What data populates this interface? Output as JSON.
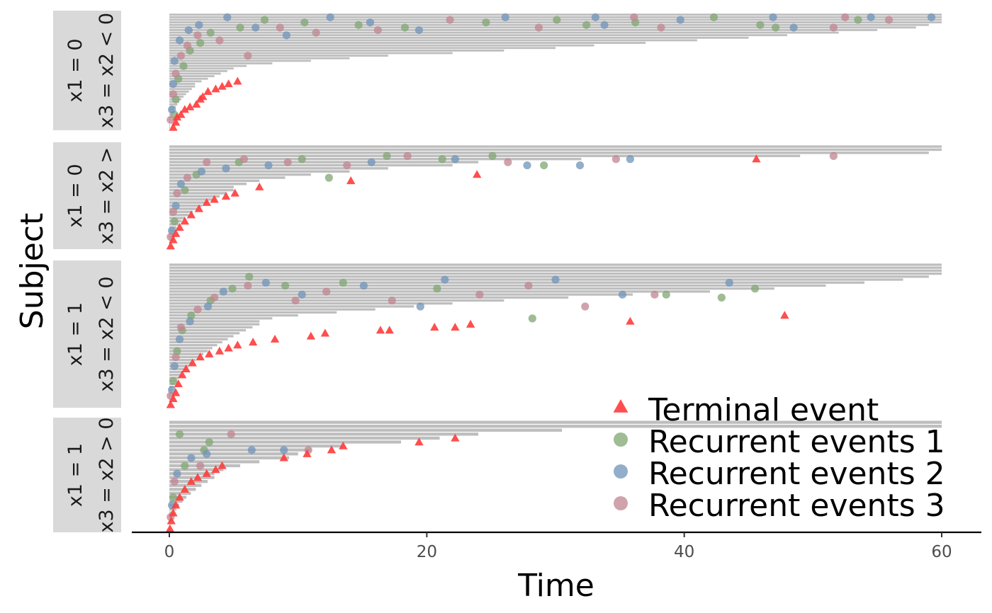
{
  "chart_data": {
    "type": "scatter",
    "xlabel": "Time",
    "ylabel": "Subject",
    "xlim": [
      -3,
      63
    ],
    "x_ticks": [
      0,
      20,
      40,
      60
    ],
    "x_tick_labels": [
      "0",
      "20",
      "40",
      "60"
    ],
    "grid": false,
    "legend_position": "bottom-right",
    "colors": {
      "terminal": "#ff3b3b",
      "recurrent_1": "#7fa672",
      "recurrent_2": "#6f93b8",
      "recurrent_3": "#c08490",
      "followup_bar": "#bebebe",
      "strip_background": "#d9d9d9"
    },
    "legend": [
      {
        "key": "terminal",
        "label": "Terminal event",
        "shape": "triangle"
      },
      {
        "key": "recurrent_1",
        "label": "Recurrent events 1",
        "shape": "circle"
      },
      {
        "key": "recurrent_2",
        "label": "Recurrent events 2",
        "shape": "circle"
      },
      {
        "key": "recurrent_3",
        "label": "Recurrent events 3",
        "shape": "circle"
      }
    ],
    "panels": [
      {
        "strip_labels": [
          "x1 = 0",
          "x3 = x2 < 0"
        ],
        "subjects": 45,
        "longest_followups": [
          60,
          60,
          60,
          60,
          59,
          58,
          55,
          52,
          48,
          45,
          41,
          37,
          33,
          30,
          26,
          22,
          17,
          14,
          11,
          8,
          6,
          5,
          4.5,
          4,
          3.5,
          3,
          2.5,
          2
        ],
        "terminal_events": [
          [
            0.3,
            1
          ],
          [
            0.5,
            3
          ],
          [
            0.6,
            5
          ],
          [
            0.9,
            6
          ],
          [
            1.2,
            8
          ],
          [
            1.6,
            9
          ],
          [
            2.1,
            10
          ],
          [
            2.4,
            12
          ],
          [
            2.6,
            13
          ],
          [
            3.0,
            15
          ],
          [
            3.6,
            16
          ],
          [
            4.1,
            17
          ],
          [
            4.6,
            18
          ],
          [
            5.3,
            19
          ]
        ],
        "recurrent": {
          "1": [
            [
              0.4,
              6
            ],
            [
              0.5,
              12
            ],
            [
              0.7,
              20
            ],
            [
              1.1,
              25
            ],
            [
              1.6,
              31
            ],
            [
              2.4,
              34
            ],
            [
              3.2,
              38
            ],
            [
              5.5,
              40
            ],
            [
              7.4,
              43
            ],
            [
              10.5,
              42
            ],
            [
              14.7,
              41
            ],
            [
              18.3,
              40
            ],
            [
              24.6,
              42
            ],
            [
              30.1,
              43
            ],
            [
              32.4,
              41
            ],
            [
              36.2,
              42
            ],
            [
              42.3,
              44
            ],
            [
              45.9,
              41
            ],
            [
              53.5,
              43
            ],
            [
              47.1,
              40
            ]
          ],
          "2": [
            [
              0.2,
              8
            ],
            [
              0.3,
              18
            ],
            [
              0.4,
              27
            ],
            [
              0.8,
              35
            ],
            [
              1.5,
              39
            ],
            [
              2.3,
              41
            ],
            [
              4.5,
              44
            ],
            [
              6.7,
              40
            ],
            [
              9.1,
              37
            ],
            [
              12.5,
              44
            ],
            [
              15.6,
              42
            ],
            [
              19.4,
              39
            ],
            [
              26.1,
              44
            ],
            [
              33.1,
              44
            ],
            [
              39.7,
              43
            ],
            [
              46.9,
              44
            ],
            [
              54.5,
              44
            ],
            [
              59.2,
              44
            ],
            [
              48.5,
              40
            ],
            [
              33.8,
              41
            ]
          ],
          "3": [
            [
              0.1,
              4
            ],
            [
              0.3,
              14
            ],
            [
              0.5,
              22
            ],
            [
              0.9,
              29
            ],
            [
              1.4,
              33
            ],
            [
              2.2,
              37
            ],
            [
              3.9,
              35
            ],
            [
              6.1,
              29
            ],
            [
              8.6,
              40
            ],
            [
              11.4,
              38
            ],
            [
              16.2,
              39
            ],
            [
              21.8,
              43
            ],
            [
              28.7,
              40
            ],
            [
              36.1,
              44
            ],
            [
              38.2,
              40
            ],
            [
              52.5,
              44
            ],
            [
              55.9,
              43
            ],
            [
              51.6,
              40
            ]
          ]
        }
      },
      {
        "strip_labels": [
          "x1 = 0",
          "x3 = x2 >"
        ],
        "subjects": 33,
        "longest_followups": [
          60,
          60,
          59,
          49,
          32,
          24,
          22,
          17,
          14,
          11,
          9,
          7,
          6,
          5
        ],
        "terminal_events": [
          [
            0.1,
            1
          ],
          [
            0.3,
            3
          ],
          [
            0.5,
            5
          ],
          [
            0.8,
            7
          ],
          [
            1.2,
            9
          ],
          [
            1.7,
            11
          ],
          [
            2.3,
            13
          ],
          [
            2.9,
            15
          ],
          [
            3.5,
            16
          ],
          [
            4.4,
            17
          ],
          [
            5.1,
            18
          ],
          [
            7.0,
            20
          ],
          [
            14.1,
            22
          ],
          [
            23.9,
            24
          ],
          [
            45.6,
            29
          ]
        ],
        "recurrent": {
          "1": [
            [
              0.4,
              9
            ],
            [
              1.2,
              19
            ],
            [
              2.1,
              24
            ],
            [
              5.4,
              28
            ],
            [
              10.3,
              29
            ],
            [
              16.9,
              30
            ],
            [
              25.1,
              30
            ],
            [
              29.1,
              27
            ],
            [
              21.2,
              29
            ],
            [
              12.4,
              23
            ]
          ],
          "2": [
            [
              0.2,
              6
            ],
            [
              0.5,
              14
            ],
            [
              0.9,
              21
            ],
            [
              2.5,
              25
            ],
            [
              4.4,
              26
            ],
            [
              7.7,
              27
            ],
            [
              15.7,
              28
            ],
            [
              22.2,
              29
            ],
            [
              27.8,
              27
            ],
            [
              31.9,
              27
            ],
            [
              35.8,
              29
            ]
          ],
          "3": [
            [
              0.1,
              4
            ],
            [
              0.3,
              12
            ],
            [
              0.6,
              18
            ],
            [
              1.4,
              23
            ],
            [
              2.9,
              28
            ],
            [
              5.8,
              29
            ],
            [
              9.2,
              28
            ],
            [
              13.8,
              27
            ],
            [
              18.5,
              30
            ],
            [
              26.3,
              28
            ],
            [
              34.7,
              29
            ],
            [
              51.6,
              30
            ]
          ]
        }
      },
      {
        "strip_labels": [
          "x1 = 1",
          "x3 = x2 < 0"
        ],
        "subjects": 48,
        "longest_followups": [
          60,
          60,
          60,
          60,
          59,
          57,
          54,
          51,
          47,
          42,
          36,
          31,
          26,
          22,
          19,
          16,
          13,
          10,
          8,
          7
        ],
        "terminal_events": [
          [
            0.1,
            1
          ],
          [
            0.3,
            3
          ],
          [
            0.5,
            5
          ],
          [
            0.7,
            8
          ],
          [
            1.0,
            11
          ],
          [
            1.3,
            13
          ],
          [
            1.8,
            15
          ],
          [
            2.4,
            17
          ],
          [
            3.1,
            18
          ],
          [
            3.9,
            19
          ],
          [
            4.6,
            20
          ],
          [
            5.3,
            21
          ],
          [
            6.5,
            22
          ],
          [
            8.2,
            23
          ],
          [
            11.0,
            24
          ],
          [
            12.1,
            25
          ],
          [
            16.4,
            26
          ],
          [
            17.1,
            26
          ],
          [
            20.6,
            27
          ],
          [
            22.2,
            27
          ],
          [
            23.4,
            28
          ],
          [
            35.8,
            29
          ],
          [
            47.8,
            31
          ]
        ],
        "recurrent": {
          "1": [
            [
              0.3,
              9
            ],
            [
              0.6,
              19
            ],
            [
              1.0,
              26
            ],
            [
              1.7,
              31
            ],
            [
              3.2,
              36
            ],
            [
              4.9,
              40
            ],
            [
              6.2,
              44
            ],
            [
              9.0,
              41
            ],
            [
              13.5,
              42
            ],
            [
              20.8,
              40
            ],
            [
              28.2,
              30
            ],
            [
              38.6,
              38
            ],
            [
              42.9,
              37
            ],
            [
              45.5,
              40
            ]
          ],
          "2": [
            [
              0.2,
              6
            ],
            [
              0.4,
              14
            ],
            [
              0.8,
              23
            ],
            [
              1.6,
              29
            ],
            [
              3.0,
              34
            ],
            [
              4.2,
              39
            ],
            [
              7.5,
              42
            ],
            [
              10.3,
              38
            ],
            [
              15.1,
              41
            ],
            [
              19.5,
              34
            ],
            [
              21.4,
              43
            ],
            [
              30.0,
              43
            ],
            [
              43.5,
              42
            ],
            [
              35.2,
              38
            ]
          ],
          "3": [
            [
              0.1,
              4
            ],
            [
              0.5,
              17
            ],
            [
              0.9,
              27
            ],
            [
              2.2,
              33
            ],
            [
              3.5,
              37
            ],
            [
              6.1,
              41
            ],
            [
              9.8,
              36
            ],
            [
              12.2,
              39
            ],
            [
              17.3,
              36
            ],
            [
              24.1,
              38
            ],
            [
              32.3,
              34
            ],
            [
              37.7,
              38
            ],
            [
              27.9,
              41
            ]
          ]
        }
      },
      {
        "strip_labels": [
          "x1 = 1",
          "x3 = x2 > 0"
        ],
        "subjects": 28,
        "longest_followups": [
          60,
          60,
          30.5,
          24,
          21,
          18,
          13.5,
          11,
          10,
          9.3,
          7,
          5.5,
          4.2,
          3.5
        ],
        "terminal_events": [
          [
            0.05,
            1
          ],
          [
            0.15,
            3
          ],
          [
            0.3,
            5
          ],
          [
            0.5,
            7
          ],
          [
            0.8,
            9
          ],
          [
            1.2,
            11
          ],
          [
            1.7,
            13
          ],
          [
            2.2,
            14
          ],
          [
            2.9,
            15
          ],
          [
            3.6,
            16
          ],
          [
            4.1,
            17
          ],
          [
            8.9,
            19
          ],
          [
            10.7,
            20
          ],
          [
            12.6,
            21
          ],
          [
            13.5,
            22
          ],
          [
            19.4,
            23
          ],
          [
            22.2,
            24
          ]
        ],
        "recurrent": {
          "1": [
            [
              0.3,
              9
            ],
            [
              1.2,
              17
            ],
            [
              2.7,
              21
            ],
            [
              3.1,
              23
            ],
            [
              0.8,
              25
            ]
          ],
          "2": [
            [
              0.2,
              7
            ],
            [
              0.6,
              15
            ],
            [
              1.7,
              19
            ],
            [
              2.9,
              20
            ],
            [
              6.4,
              21
            ],
            [
              8.9,
              21
            ]
          ],
          "3": [
            [
              0.1,
              4
            ],
            [
              0.4,
              13
            ],
            [
              2.4,
              17
            ],
            [
              4.8,
              25
            ],
            [
              10.8,
              21
            ]
          ]
        }
      }
    ]
  }
}
